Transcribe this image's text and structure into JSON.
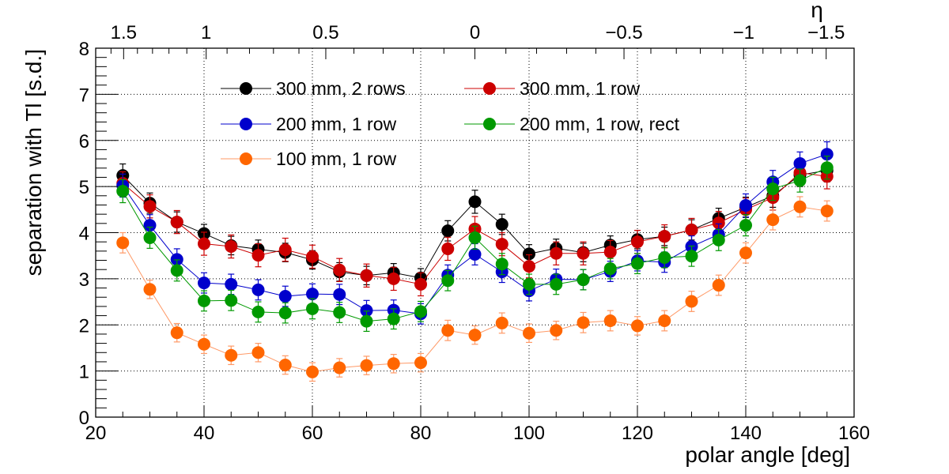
{
  "chart_data": {
    "type": "scatter",
    "title": "",
    "xlabel": "polar angle [deg]",
    "ylabel": "separation with Tl [s.d.]",
    "top_axis_label": "η",
    "xlim": [
      20,
      160
    ],
    "ylim": [
      0,
      8
    ],
    "grid": true,
    "xticks": [
      20,
      40,
      60,
      80,
      100,
      120,
      140,
      160
    ],
    "xtick_labels": [
      "20",
      "40",
      "60",
      "80",
      "100",
      "120",
      "140",
      "160"
    ],
    "yticks": [
      0,
      1,
      2,
      3,
      4,
      5,
      6,
      7,
      8
    ],
    "ytick_labels": [
      "0",
      "1",
      "2",
      "3",
      "4",
      "5",
      "6",
      "7",
      "8"
    ],
    "top_ticks_eta": [
      1.5,
      1,
      0.5,
      0,
      -0.5,
      -1,
      -1.5
    ],
    "top_tick_labels": [
      "1.5",
      "1",
      "0.5",
      "0",
      "−0.5",
      "−1",
      "−1.5"
    ],
    "legend_position": "top-left",
    "x": [
      25,
      30,
      35,
      40,
      45,
      50,
      55,
      60,
      65,
      70,
      75,
      80,
      85,
      90,
      95,
      100,
      105,
      110,
      115,
      120,
      125,
      130,
      135,
      140,
      145,
      150,
      155
    ],
    "series": [
      {
        "name": "300 mm, 2 rows",
        "color": "#000000",
        "values": [
          5.24,
          4.64,
          4.23,
          3.98,
          3.72,
          3.64,
          3.57,
          3.41,
          3.15,
          3.07,
          3.13,
          3.02,
          4.04,
          4.67,
          4.18,
          3.54,
          3.66,
          3.57,
          3.73,
          3.85,
          3.92,
          4.06,
          4.31,
          4.55,
          4.8,
          5.25,
          5.35
        ],
        "errors": [
          0.25,
          0.22,
          0.22,
          0.2,
          0.2,
          0.2,
          0.2,
          0.2,
          0.2,
          0.2,
          0.2,
          0.2,
          0.22,
          0.25,
          0.22,
          0.2,
          0.2,
          0.2,
          0.2,
          0.2,
          0.2,
          0.22,
          0.22,
          0.22,
          0.25,
          0.25,
          0.25
        ]
      },
      {
        "name": "300 mm, 1 row",
        "color": "#cc0000",
        "values": [
          5.07,
          4.57,
          4.23,
          3.76,
          3.7,
          3.51,
          3.63,
          3.48,
          3.19,
          3.07,
          3.0,
          2.88,
          3.65,
          4.08,
          3.75,
          3.27,
          3.55,
          3.55,
          3.58,
          3.8,
          3.92,
          4.06,
          4.21,
          4.5,
          4.76,
          5.3,
          5.22
        ],
        "errors": [
          0.25,
          0.25,
          0.25,
          0.25,
          0.25,
          0.25,
          0.25,
          0.25,
          0.25,
          0.25,
          0.25,
          0.25,
          0.25,
          0.27,
          0.25,
          0.25,
          0.25,
          0.25,
          0.25,
          0.25,
          0.25,
          0.25,
          0.25,
          0.25,
          0.27,
          0.27,
          0.27
        ]
      },
      {
        "name": "200 mm, 1 row",
        "color": "#0000cc",
        "values": [
          5.02,
          4.16,
          3.42,
          2.91,
          2.88,
          2.76,
          2.62,
          2.67,
          2.66,
          2.31,
          2.32,
          2.24,
          3.08,
          3.53,
          3.15,
          2.74,
          2.99,
          2.98,
          3.16,
          3.39,
          3.36,
          3.7,
          3.96,
          4.59,
          5.1,
          5.5,
          5.7
        ],
        "errors": [
          0.25,
          0.23,
          0.23,
          0.22,
          0.22,
          0.22,
          0.22,
          0.22,
          0.22,
          0.22,
          0.22,
          0.22,
          0.22,
          0.23,
          0.23,
          0.22,
          0.22,
          0.22,
          0.22,
          0.22,
          0.22,
          0.23,
          0.23,
          0.25,
          0.25,
          0.25,
          0.27
        ]
      },
      {
        "name": "200 mm, 1 row, rect",
        "color": "#009900",
        "values": [
          4.9,
          3.89,
          3.18,
          2.52,
          2.53,
          2.28,
          2.26,
          2.35,
          2.27,
          2.08,
          2.13,
          2.29,
          2.96,
          3.89,
          3.32,
          2.88,
          2.88,
          2.98,
          3.22,
          3.33,
          3.46,
          3.49,
          3.84,
          4.16,
          4.95,
          5.13,
          5.41
        ],
        "errors": [
          0.25,
          0.23,
          0.23,
          0.22,
          0.22,
          0.22,
          0.22,
          0.22,
          0.22,
          0.22,
          0.22,
          0.22,
          0.22,
          0.25,
          0.23,
          0.22,
          0.22,
          0.22,
          0.22,
          0.22,
          0.22,
          0.22,
          0.23,
          0.23,
          0.25,
          0.25,
          0.25
        ]
      },
      {
        "name": "100 mm, 1 row",
        "color": "#ff6600",
        "line_color": "#ff9966",
        "values": [
          3.78,
          2.77,
          1.83,
          1.58,
          1.34,
          1.4,
          1.13,
          0.98,
          1.07,
          1.12,
          1.16,
          1.18,
          1.88,
          1.78,
          2.04,
          1.82,
          1.88,
          2.05,
          2.09,
          1.98,
          2.09,
          2.51,
          2.86,
          3.56,
          4.28,
          4.56,
          4.47
        ],
        "errors": [
          0.22,
          0.2,
          0.2,
          0.2,
          0.2,
          0.2,
          0.2,
          0.2,
          0.2,
          0.2,
          0.2,
          0.2,
          0.22,
          0.2,
          0.22,
          0.2,
          0.2,
          0.22,
          0.22,
          0.2,
          0.22,
          0.22,
          0.22,
          0.22,
          0.22,
          0.22,
          0.22
        ]
      }
    ],
    "legend_order": [
      0,
      1,
      2,
      3,
      4
    ]
  }
}
